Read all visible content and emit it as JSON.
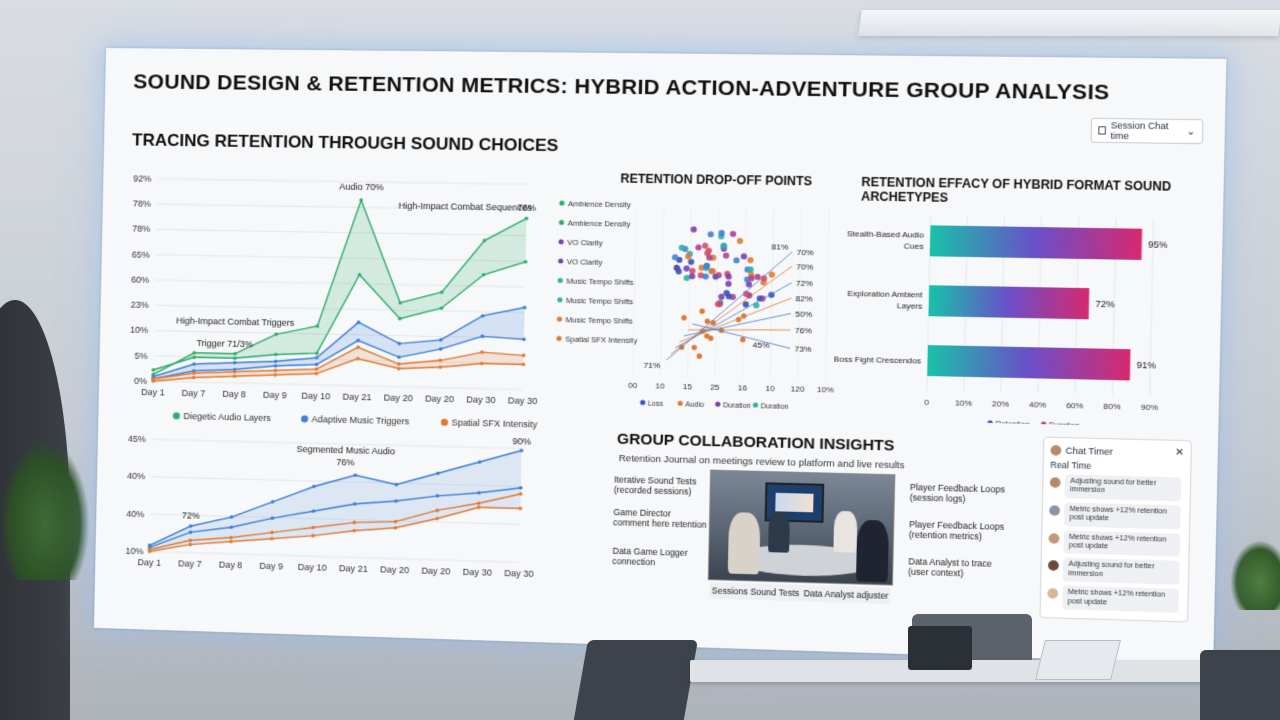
{
  "dashboard": {
    "title": "SOUND DESIGN & RETENTION METRICS: HYBRID ACTION-ADVENTURE GROUP ANALYSIS",
    "subtitle": "TRACING RETENTION THROUGH SOUND CHOICES",
    "dropdown_label": "Session Chat time"
  },
  "colors": {
    "green": "#2fae6a",
    "blue": "#3f7fd6",
    "orange": "#e07a33",
    "purple": "#7a3fb0",
    "teal": "#2bb3a8"
  },
  "chart_data": [
    {
      "id": "main-line",
      "type": "line",
      "x": [
        "Day 1",
        "Day 7",
        "Day 8",
        "Day 9",
        "Day 10",
        "Day 21",
        "Day 20",
        "Day 20",
        "Day 30",
        "Day 30"
      ],
      "yticks": [
        "92%",
        "78%",
        "78%",
        "65%",
        "60%",
        "23%",
        "10%",
        "5%",
        "0%"
      ],
      "series": [
        {
          "name": "Diegetic Audio Layers",
          "values": [
            3,
            13,
            13,
            22,
            26,
            82,
            37,
            42,
            65,
            75
          ]
        },
        {
          "name": "Diegetic Audio Layers (upper)",
          "values": [
            5,
            11,
            11,
            13,
            14,
            49,
            30,
            35,
            50,
            56
          ]
        },
        {
          "name": "Adaptive Music Triggers",
          "values": [
            2,
            8,
            9,
            10,
            12,
            28,
            19,
            21,
            32,
            36
          ]
        },
        {
          "name": "Adaptive Music Triggers (lower)",
          "values": [
            1,
            5,
            6,
            8,
            9,
            20,
            13,
            17,
            23,
            22
          ]
        },
        {
          "name": "Spatial SFX Intensity",
          "values": [
            1,
            4,
            5,
            6,
            7,
            17,
            10,
            12,
            16,
            15
          ]
        },
        {
          "name": "Spatial SFX Intensity (lower)",
          "values": [
            0,
            2,
            3,
            4,
            5,
            12,
            8,
            9,
            11,
            11
          ]
        }
      ],
      "legend": [
        "Diegetic Audio Layers",
        "Adaptive Music Triggers",
        "Spatial SFX Intensity"
      ],
      "annotations": [
        "Audio 70%",
        "High-Impact Combat Sequences",
        "76%",
        "High-Impact Combat Triggers",
        "Trigger 71/3%"
      ]
    },
    {
      "id": "lower-line",
      "type": "line",
      "x": [
        "Day 1",
        "Day 7",
        "Day 8",
        "Day 9",
        "Day 10",
        "Day 21",
        "Day 20",
        "Day 20",
        "Day 30",
        "Day 30"
      ],
      "yticks": [
        "45%",
        "40%",
        "40%",
        "10%"
      ],
      "series": [
        {
          "name": "Segmented Music Audio",
          "values": [
            3,
            13,
            18,
            26,
            34,
            40,
            36,
            42,
            48,
            54
          ]
        },
        {
          "name": "blue-mid",
          "values": [
            2,
            10,
            13,
            18,
            22,
            26,
            28,
            31,
            33,
            36
          ]
        },
        {
          "name": "orange-upper",
          "values": [
            1,
            6,
            8,
            11,
            14,
            17,
            18,
            24,
            28,
            33
          ]
        },
        {
          "name": "orange-lower",
          "values": [
            0,
            4,
            6,
            8,
            10,
            13,
            15,
            20,
            26,
            26
          ]
        }
      ],
      "annotations": [
        "Segmented Music Audio",
        "76%",
        "72%",
        "90%"
      ]
    },
    {
      "id": "scatter",
      "type": "scatter",
      "title": "RETENTION DROP-OFF POINTS",
      "categories": [
        "Ambience Density",
        "Ambience Density",
        "VO Clarity",
        "VO Clarity",
        "Music Tempo Shifts",
        "Music Tempo Shifts",
        "Music Tempo Shifts",
        "Spatial SFX Intensity"
      ],
      "xticks": [
        "00",
        "10",
        "15",
        "25",
        "16",
        "10",
        "120",
        "10%"
      ],
      "legend": [
        "Loss",
        "Audio",
        "Duration",
        "Duration"
      ],
      "callouts": [
        "81%",
        "70%",
        "70%",
        "72%",
        "82%",
        "50%",
        "76%",
        "73%",
        "71%",
        "45%"
      ]
    },
    {
      "id": "bars",
      "type": "bar",
      "title": "RETENTION EFFACY OF HYBRID FORMAT SOUND ARCHETYPES",
      "categories": [
        "Stealth-Based Audio Cues",
        "Exploration Ambient Layers",
        "Boss Fight Crescendos"
      ],
      "values": [
        95,
        72,
        91
      ],
      "value_labels": [
        "95%",
        "72%",
        "91%"
      ],
      "xticks": [
        "0",
        "10%",
        "20%",
        "40%",
        "60%",
        "80%",
        "90%"
      ],
      "legend": [
        "Retention",
        "Duration"
      ]
    }
  ],
  "group": {
    "title": "GROUP COLLABORATION INSIGHTS",
    "subtitle": "Retention Journal on meetings review to platform and live results",
    "left_labels": [
      "Iterative Sound Tests (recorded sessions)",
      "Game Director comment here retention",
      "Data Game Logger connection"
    ],
    "right_labels": [
      "Player Feedback Loops (session logs)",
      "Player Feedback Loops (retention metrics)",
      "Data Analyst to trace (user context)"
    ],
    "photo_caption_left": "Sessions Sound Tests",
    "photo_caption_right": "Data Analyst adjuster"
  },
  "chat": {
    "title": "Chat Timer",
    "subtitle": "Real Time",
    "messages": [
      "Adjusting sound for better immersion",
      "Metric shows +12% retention post update",
      "Metric shows +12% retention post update",
      "Adjusting sound for better immersion",
      "Metric shows +12% retention post update"
    ]
  }
}
